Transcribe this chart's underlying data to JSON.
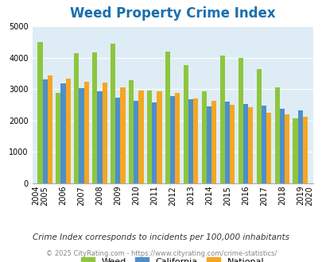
{
  "title": "Weed Property Crime Index",
  "title_color": "#1a6faf",
  "years": [
    2005,
    2006,
    2007,
    2008,
    2009,
    2010,
    2011,
    2012,
    2013,
    2014,
    2015,
    2016,
    2017,
    2018,
    2019
  ],
  "weed": [
    4500,
    2870,
    4150,
    4170,
    4450,
    3290,
    2960,
    4200,
    3770,
    2930,
    4060,
    4000,
    3640,
    3060,
    2060
  ],
  "california": [
    3310,
    3170,
    3020,
    2940,
    2720,
    2630,
    2570,
    2780,
    2680,
    2460,
    2610,
    2530,
    2480,
    2380,
    2320
  ],
  "national": [
    3440,
    3330,
    3240,
    3200,
    3050,
    2950,
    2940,
    2870,
    2700,
    2620,
    2490,
    2430,
    2240,
    2200,
    2110
  ],
  "weed_color": "#8dc63f",
  "california_color": "#4d8fcc",
  "national_color": "#f5a623",
  "bg_color": "#deedf5",
  "ylim": [
    0,
    5000
  ],
  "yticks": [
    0,
    1000,
    2000,
    3000,
    4000,
    5000
  ],
  "all_years": [
    2004,
    2005,
    2006,
    2007,
    2008,
    2009,
    2010,
    2011,
    2012,
    2013,
    2014,
    2015,
    2016,
    2017,
    2018,
    2019,
    2020
  ],
  "note": "Crime Index corresponds to incidents per 100,000 inhabitants",
  "copyright": "© 2025 CityRating.com - https://www.cityrating.com/crime-statistics/",
  "note_color": "#333333",
  "copyright_color": "#888888"
}
